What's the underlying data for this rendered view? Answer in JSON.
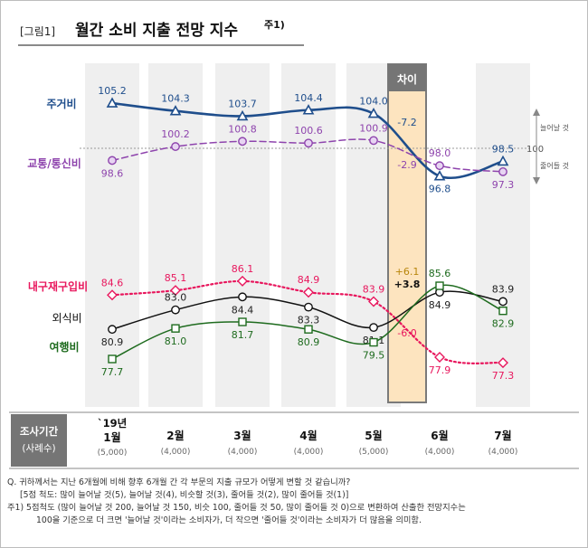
{
  "title": {
    "fig_label": "[그림1]",
    "text": "월간 소비 지출 전망 지수",
    "superscript": "주1)"
  },
  "chart_data": {
    "type": "line",
    "categories": [
      {
        "top": "`19년",
        "label": "1월",
        "sample": "(5,000)"
      },
      {
        "label": "2월",
        "sample": "(4,000)"
      },
      {
        "label": "3월",
        "sample": "(4,000)"
      },
      {
        "label": "4월",
        "sample": "(4,000)"
      },
      {
        "label": "5월",
        "sample": "(5,000)"
      },
      {
        "label": "6월",
        "sample": "(4,000)"
      },
      {
        "label": "7월",
        "sample": "(4,000)"
      }
    ],
    "series": [
      {
        "name": "주거비",
        "key": "housing",
        "color": "#1f4e8c",
        "style": "solid",
        "marker": "triangle",
        "values": [
          null,
          104.3,
          103.7,
          104.4,
          104.0,
          96.8,
          98.5
        ],
        "labels": [
          "105.2",
          "104.3",
          "103.7",
          "104.4",
          "104.0",
          "96.8",
          "98.5"
        ],
        "diff": "-7.2",
        "diff_color": "#1f4e8c"
      },
      {
        "name": "교통/통신비",
        "key": "transport",
        "color": "#8e44ad",
        "style": "dashed",
        "marker": "circle",
        "values": [
          98.6,
          100.2,
          100.8,
          100.6,
          100.9,
          98.0,
          97.3
        ],
        "labels": [
          "98.6",
          "100.2",
          "100.8",
          "100.6",
          "100.9",
          "98.0",
          "97.3"
        ],
        "diff": "-2.9",
        "diff_color": "#8e44ad"
      },
      {
        "name": "내구재구입비",
        "key": "durable",
        "color": "#e8175d",
        "style": "dotted",
        "marker": "diamond",
        "values": [
          84.6,
          85.1,
          86.1,
          84.9,
          83.9,
          77.9,
          77.3
        ],
        "labels": [
          "84.6",
          "85.1",
          "86.1",
          "84.9",
          "83.9",
          "77.9",
          "77.3"
        ],
        "diff": "-6.0",
        "diff_color": "#e8175d"
      },
      {
        "name": "외식비",
        "key": "dining",
        "color": "#111111",
        "style": "solid",
        "marker": "circle",
        "values": [
          80.9,
          83.0,
          84.4,
          83.3,
          81.1,
          84.9,
          83.9
        ],
        "labels": [
          "80.9",
          "83.0",
          "84.4",
          "83.3",
          "81.1",
          "84.9",
          "83.9"
        ],
        "diff": "+3.8",
        "diff_color": "#111111"
      },
      {
        "name": "여행비",
        "key": "travel",
        "color": "#1e6b1e",
        "style": "solid",
        "marker": "square",
        "values": [
          77.7,
          81.0,
          81.7,
          80.9,
          79.5,
          85.6,
          82.9
        ],
        "labels": [
          "77.7",
          "81.0",
          "81.7",
          "80.9",
          "79.5",
          "85.6",
          "82.9"
        ],
        "diff": "+6.1",
        "diff_color": "#b8860b"
      }
    ],
    "reference": {
      "value": 100,
      "label": "100",
      "up_label": "늘어날 것",
      "down_label": "줄어들 것"
    },
    "diff_header": "차이",
    "row_header": {
      "line1": "조사기간",
      "line2": "(사례수)"
    }
  },
  "notes": {
    "question": "Q. 귀하께서는 지난 6개월에 비해 향후 6개월 간 각 부문의 지출 규모가 어떻게 변할 것 같습니까?",
    "scale": "[5점 척도: 많이 늘어날 것(5), 늘어날 것(4), 비슷할 것(3), 줄어들 것(2), 많이 줄어들 것(1)]",
    "footnote1": "주1) 5점척도 (많이 늘어날 것 200, 늘어날 것 150, 비슷 100, 줄어들 것 50, 많이 줄어들 것 0)으로 변환하여 산출한 전망지수는",
    "footnote2": "100을 기준으로 더 크면 '늘어날 것'이라는 소비자가, 더 작으면 '줄어들 것'이라는 소비자가 더 많음을 의미함."
  }
}
